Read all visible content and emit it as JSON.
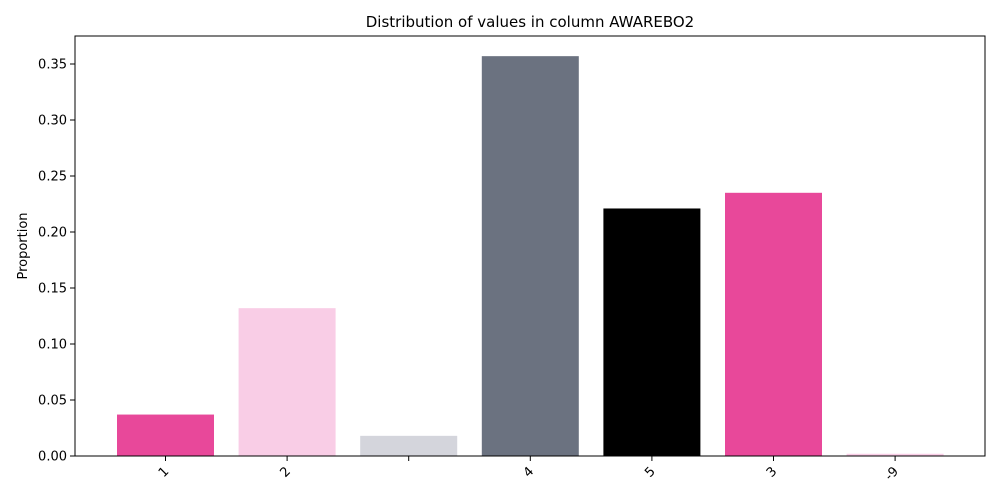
{
  "chart_data": {
    "type": "bar",
    "title": "Distribution of values in column AWAREBO2",
    "xlabel": "",
    "ylabel": "Proportion",
    "categories": [
      "1",
      "2",
      "",
      "4",
      "5",
      "3",
      "-9"
    ],
    "values": [
      0.037,
      0.132,
      0.018,
      0.357,
      0.221,
      0.235,
      0.002
    ],
    "colors": [
      "#e8489a",
      "#f9cde6",
      "#d4d5dc",
      "#6b7280",
      "#000000",
      "#e8489a",
      "#f9cde6"
    ],
    "ylim": [
      0,
      0.375
    ],
    "yticks": [
      0.0,
      0.05,
      0.1,
      0.15,
      0.2,
      0.25,
      0.3,
      0.35
    ],
    "ytick_labels": [
      "0.00",
      "0.05",
      "0.10",
      "0.15",
      "0.20",
      "0.25",
      "0.30",
      "0.35"
    ],
    "grid": false,
    "legend": "none"
  }
}
